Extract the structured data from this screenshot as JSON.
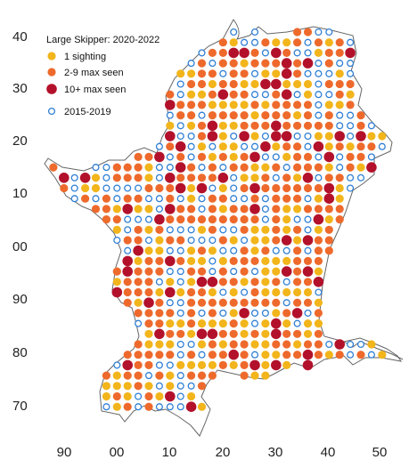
{
  "legend": {
    "title": "Large Skipper: 2020-2022",
    "items": [
      {
        "label": "1 sighting",
        "category": "one"
      },
      {
        "label": "2-9 max seen",
        "category": "few"
      },
      {
        "label": "10+ max seen",
        "category": "many"
      },
      {
        "label": "2015-2019",
        "category": "old"
      }
    ]
  },
  "colors": {
    "one": "#f2b51b",
    "few": "#ee6a2c",
    "many": "#b3112b",
    "old": "#2f7fd4",
    "outline": "#555555"
  },
  "axes": {
    "y_ticks": [
      "40",
      "30",
      "20",
      "10",
      "00",
      "90",
      "80",
      "70"
    ],
    "x_ticks": [
      "90",
      "00",
      "10",
      "20",
      "30",
      "40",
      "50"
    ]
  },
  "grid_rows": [
    {
      "row": 41,
      "cells": "...........................OOOOOOO......"
    },
    {
      "row": 40,
      "cells": "......................OFFFFF..FFFFFFF...."
    },
    {
      "row": 39,
      "cells": ".....................FOOOYOOFFFFFFFFF...."
    },
    {
      "row": 38,
      "cells": "....................OOOOFFFFFFFYFFFFF...."
    },
    {
      "row": 37,
      "cells": ".....................FOOOOOOOFYFFFYFFFF...."
    },
    {
      "row": 36,
      "cells": "...................OOOOFFFOYFFFOOFMOFMFF.."
    },
    {
      "row": 35,
      "cells": "...............FOOOYFOOYOYFOOOOOOYOOFY..."
    },
    {
      "row": 34,
      "cells": "..............YMOOOOYOMFFFFFFOOOOOOOOOO.."
    },
    {
      "row": 33,
      "cells": "..............YFOOFYOOMFYOOFYOOOOOOOOYF.."
    },
    {
      "row": 32,
      "cells": "..............FYOOYFOYFOFFFMOOOOOOOOOOO.."
    },
    {
      "row": 31,
      "cells": "..............YOYOYFYFFYFFFFFOYOOYFFYOOO."
    },
    {
      "row": 30,
      "cells": "...............YOOFFYFFFFFFYFFOOOYFFOOOO."
    },
    {
      "row": 29,
      "cells": "...............OOOFYFFOFMFFFFFFFYFOYOOOOO"
    },
    {
      "row": 28,
      "cells": "...............OOOYYFOFOMFFFFFFFFFMFOOOOO"
    },
    {
      "row": 27,
      "cells": "..............FYFYFFFMFYFFFFFFFFFFYOOOOOO"
    },
    {
      "row": 26,
      "cells": "..............OFYFFOFOMMFFFFFFFFFFYFFYOOO"
    },
    {
      "row": 25,
      "cells": "..............OYFFFFYFFFFFFFFFFFFFFYFFFF."
    },
    {
      "row": 24,
      "cells": "..............FFFFOFFFFFFFFFFFFFYFFFFFFFF"
    },
    {
      "row": 23,
      "cells": "...............FYFFFFFFFFFFFFFFFFFFFFFFFF"
    },
    {
      "row": 22,
      "cells": "...............OFFYFFFFFFFFFFFFFFFFFOO..."
    }
  ],
  "cells": [
    {
      "e": 33,
      "n": 41,
      "c": "few"
    },
    {
      "e": 35,
      "n": 41,
      "c": "few"
    },
    {
      "e": 37,
      "n": 41,
      "c": "few"
    },
    {
      "e": 39,
      "n": 41,
      "c": "few"
    },
    {
      "e": 41,
      "n": 41,
      "c": "few"
    },
    {
      "e": 24,
      "n": 39,
      "c": "old"
    },
    {
      "e": 26,
      "n": 39,
      "c": "few"
    },
    {
      "e": 28,
      "n": 39,
      "c": "few"
    },
    {
      "e": 30,
      "n": 39,
      "c": "few"
    },
    {
      "e": 32,
      "n": 39,
      "c": "few"
    },
    {
      "e": 34,
      "n": 39,
      "c": "few"
    },
    {
      "e": 36,
      "n": 39,
      "c": "few"
    },
    {
      "e": 38,
      "n": 39,
      "c": "few"
    },
    {
      "e": 40,
      "n": 39,
      "c": "few"
    },
    {
      "e": 42,
      "n": 39,
      "c": "few"
    },
    {
      "e": 23,
      "n": 37,
      "c": "old"
    },
    {
      "e": 25,
      "n": 37,
      "c": "few"
    },
    {
      "e": 27,
      "n": 37,
      "c": "old"
    },
    {
      "e": 29,
      "n": 37,
      "c": "one"
    },
    {
      "e": 31,
      "n": 37,
      "c": "old"
    },
    {
      "e": 33,
      "n": 37,
      "c": "few"
    },
    {
      "e": 35,
      "n": 37,
      "c": "few"
    },
    {
      "e": 37,
      "n": 37,
      "c": "one"
    },
    {
      "e": 39,
      "n": 37,
      "c": "few"
    },
    {
      "e": 41,
      "n": 37,
      "c": "few"
    },
    {
      "e": 18,
      "n": 35,
      "c": "old"
    },
    {
      "e": 20,
      "n": 35,
      "c": "old"
    },
    {
      "e": 22,
      "n": 35,
      "c": "old"
    },
    {
      "e": 24,
      "n": 35,
      "c": "old"
    },
    {
      "e": 26,
      "n": 35,
      "c": "many"
    },
    {
      "e": 28,
      "n": 35,
      "c": "few"
    },
    {
      "e": 30,
      "n": 35,
      "c": "one"
    },
    {
      "e": 32,
      "n": 35,
      "c": "few"
    },
    {
      "e": 34,
      "n": 35,
      "c": "old"
    },
    {
      "e": 36,
      "n": 35,
      "c": "many"
    },
    {
      "e": 38,
      "n": 35,
      "c": "few"
    },
    {
      "e": 40,
      "n": 35,
      "c": "old"
    },
    {
      "e": 17,
      "n": 33,
      "c": "many"
    },
    {
      "e": 19,
      "n": 33,
      "c": "one"
    },
    {
      "e": 21,
      "n": 33,
      "c": "old"
    },
    {
      "e": 23,
      "n": 33,
      "c": "old"
    },
    {
      "e": 25,
      "n": 33,
      "c": "few"
    },
    {
      "e": 27,
      "n": 33,
      "c": "old"
    },
    {
      "e": 29,
      "n": 33,
      "c": "old"
    },
    {
      "e": 31,
      "n": 33,
      "c": "old"
    },
    {
      "e": 33,
      "n": 33,
      "c": "old"
    },
    {
      "e": 35,
      "n": 33,
      "c": "old"
    },
    {
      "e": 37,
      "n": 33,
      "c": "old"
    },
    {
      "e": 39,
      "n": 33,
      "c": "old"
    },
    {
      "e": 41,
      "n": 33,
      "c": "many"
    },
    {
      "e": 14,
      "n": 31,
      "c": "one"
    },
    {
      "e": 16,
      "n": 31,
      "c": "old"
    },
    {
      "e": 18,
      "n": 31,
      "c": "old"
    },
    {
      "e": 20,
      "n": 31,
      "c": "few"
    },
    {
      "e": 22,
      "n": 31,
      "c": "many"
    },
    {
      "e": 24,
      "n": 31,
      "c": "one"
    },
    {
      "e": 26,
      "n": 31,
      "c": "few"
    },
    {
      "e": 28,
      "n": 31,
      "c": "old"
    },
    {
      "e": 30,
      "n": 31,
      "c": "old"
    },
    {
      "e": 32,
      "n": 31,
      "c": "old"
    },
    {
      "e": 34,
      "n": 31,
      "c": "old"
    },
    {
      "e": 36,
      "n": 31,
      "c": "old"
    },
    {
      "e": 38,
      "n": 31,
      "c": "old"
    },
    {
      "e": 40,
      "n": 31,
      "c": "old"
    },
    {
      "e": 42,
      "n": 31,
      "c": "one"
    },
    {
      "e": 15,
      "n": 29,
      "c": "few"
    },
    {
      "e": 17,
      "n": 29,
      "c": "old"
    },
    {
      "e": 19,
      "n": 29,
      "c": "one"
    },
    {
      "e": 21,
      "n": 29,
      "c": "few"
    },
    {
      "e": 23,
      "n": 29,
      "c": "old"
    },
    {
      "e": 25,
      "n": 29,
      "c": "one"
    },
    {
      "e": 27,
      "n": 29,
      "c": "many"
    },
    {
      "e": 29,
      "n": 29,
      "c": "few"
    },
    {
      "e": 31,
      "n": 29,
      "c": "old"
    },
    {
      "e": 33,
      "n": 29,
      "c": "few"
    },
    {
      "e": 35,
      "n": 29,
      "c": "old"
    },
    {
      "e": 37,
      "n": 29,
      "c": "old"
    },
    {
      "e": 39,
      "n": 29,
      "c": "old"
    },
    {
      "e": 41,
      "n": 29,
      "c": "old"
    },
    {
      "e": 14,
      "n": 27,
      "c": "old"
    },
    {
      "e": 16,
      "n": 27,
      "c": "one"
    },
    {
      "e": 18,
      "n": 27,
      "c": "few"
    },
    {
      "e": 20,
      "n": 27,
      "c": "one"
    },
    {
      "e": 22,
      "n": 27,
      "c": "few"
    },
    {
      "e": 24,
      "n": 27,
      "c": "few"
    },
    {
      "e": 26,
      "n": 27,
      "c": "few"
    },
    {
      "e": 28,
      "n": 27,
      "c": "few"
    },
    {
      "e": 30,
      "n": 27,
      "c": "few"
    },
    {
      "e": 32,
      "n": 27,
      "c": "one"
    },
    {
      "e": 34,
      "n": 27,
      "c": "few"
    },
    {
      "e": 36,
      "n": 27,
      "c": "one"
    },
    {
      "e": 38,
      "n": 27,
      "c": "few"
    },
    {
      "e": 40,
      "n": 27,
      "c": "old"
    },
    {
      "e": 42,
      "n": 27,
      "c": "old"
    },
    {
      "e": 15,
      "n": 25,
      "c": "old"
    },
    {
      "e": 17,
      "n": 25,
      "c": "old"
    },
    {
      "e": 19,
      "n": 25,
      "c": "few"
    },
    {
      "e": 21,
      "n": 25,
      "c": "one"
    },
    {
      "e": 23,
      "n": 25,
      "c": "few"
    },
    {
      "e": 25,
      "n": 25,
      "c": "few"
    },
    {
      "e": 27,
      "n": 25,
      "c": "one"
    },
    {
      "e": 29,
      "n": 25,
      "c": "few"
    },
    {
      "e": 31,
      "n": 25,
      "c": "few"
    },
    {
      "e": 33,
      "n": 25,
      "c": "old"
    },
    {
      "e": 35,
      "n": 25,
      "c": "one"
    },
    {
      "e": 37,
      "n": 25,
      "c": "one"
    },
    {
      "e": 39,
      "n": 25,
      "c": "few"
    },
    {
      "e": 41,
      "n": 25,
      "c": "old"
    },
    {
      "e": 15,
      "n": 23,
      "c": "old"
    },
    {
      "e": 17,
      "n": 23,
      "c": "old"
    },
    {
      "e": 19,
      "n": 23,
      "c": "one"
    },
    {
      "e": 21,
      "n": 23,
      "c": "one"
    },
    {
      "e": 23,
      "n": 23,
      "c": "many"
    },
    {
      "e": 25,
      "n": 23,
      "c": "few"
    },
    {
      "e": 27,
      "n": 23,
      "c": "few"
    },
    {
      "e": 29,
      "n": 23,
      "c": "few"
    },
    {
      "e": 31,
      "n": 23,
      "c": "few"
    },
    {
      "e": 33,
      "n": 23,
      "c": "few"
    },
    {
      "e": 35,
      "n": 23,
      "c": "one"
    },
    {
      "e": 37,
      "n": 23,
      "c": "few"
    },
    {
      "e": 39,
      "n": 23,
      "c": "old"
    },
    {
      "e": 41,
      "n": 23,
      "c": "one"
    },
    {
      "e": 43,
      "n": 23,
      "c": "old"
    },
    {
      "e": 47,
      "n": 23,
      "c": "old"
    },
    {
      "e": 49,
      "n": 23,
      "c": "old"
    },
    {
      "e": 17,
      "n": 21,
      "c": "old"
    },
    {
      "e": 19,
      "n": 21,
      "c": "one"
    },
    {
      "e": 21,
      "n": 21,
      "c": "few"
    },
    {
      "e": 23,
      "n": 21,
      "c": "one"
    },
    {
      "e": 25,
      "n": 21,
      "c": "few"
    },
    {
      "e": 27,
      "n": 21,
      "c": "few"
    },
    {
      "e": 29,
      "n": 21,
      "c": "one"
    },
    {
      "e": 31,
      "n": 21,
      "c": "few"
    },
    {
      "e": 33,
      "n": 21,
      "c": "many"
    },
    {
      "e": 35,
      "n": 21,
      "c": "few"
    },
    {
      "e": 37,
      "n": 21,
      "c": "one"
    },
    {
      "e": 39,
      "n": 21,
      "c": "few"
    },
    {
      "e": 41,
      "n": 21,
      "c": "few"
    },
    {
      "e": 43,
      "n": 21,
      "c": "old"
    },
    {
      "e": 45,
      "n": 21,
      "c": "few"
    },
    {
      "e": 47,
      "n": 21,
      "c": "few"
    },
    {
      "e": 49,
      "n": 21,
      "c": "one"
    },
    {
      "e": 51,
      "n": 21,
      "c": "one"
    },
    {
      "e": 87,
      "n": 17,
      "c": "old"
    },
    {
      "e": 89,
      "n": 19,
      "c": "old"
    },
    {
      "e": 13,
      "n": 19,
      "c": "one"
    },
    {
      "e": 17,
      "n": 19,
      "c": "many"
    },
    {
      "e": 19,
      "n": 19,
      "c": "old"
    },
    {
      "e": 21,
      "n": 19,
      "c": "old"
    },
    {
      "e": 23,
      "n": 19,
      "c": "old"
    },
    {
      "e": 25,
      "n": 19,
      "c": "one"
    },
    {
      "e": 27,
      "n": 19,
      "c": "old"
    },
    {
      "e": 29,
      "n": 19,
      "c": "few"
    },
    {
      "e": 31,
      "n": 19,
      "c": "few"
    },
    {
      "e": 33,
      "n": 19,
      "c": "few"
    },
    {
      "e": 35,
      "n": 19,
      "c": "few"
    },
    {
      "e": 37,
      "n": 19,
      "c": "few"
    },
    {
      "e": 39,
      "n": 19,
      "c": "one"
    },
    {
      "e": 41,
      "n": 19,
      "c": "few"
    },
    {
      "e": 43,
      "n": 19,
      "c": "few"
    },
    {
      "e": 45,
      "n": 19,
      "c": "few"
    },
    {
      "e": 47,
      "n": 19,
      "c": "few"
    },
    {
      "e": 49,
      "n": 19,
      "c": "old"
    },
    {
      "e": 14,
      "n": 17,
      "c": "old"
    },
    {
      "e": 16,
      "n": 17,
      "c": "few"
    },
    {
      "e": 18,
      "n": 17,
      "c": "few"
    },
    {
      "e": 20,
      "n": 17,
      "c": "old"
    },
    {
      "e": 22,
      "n": 17,
      "c": "old"
    },
    {
      "e": 24,
      "n": 17,
      "c": "one"
    },
    {
      "e": 26,
      "n": 17,
      "c": "old"
    },
    {
      "e": 28,
      "n": 17,
      "c": "one"
    },
    {
      "e": 30,
      "n": 17,
      "c": "few"
    },
    {
      "e": 32,
      "n": 17,
      "c": "few"
    },
    {
      "e": 34,
      "n": 17,
      "c": "few"
    },
    {
      "e": 36,
      "n": 17,
      "c": "few"
    },
    {
      "e": 38,
      "n": 17,
      "c": "few"
    },
    {
      "e": 40,
      "n": 17,
      "c": "few"
    },
    {
      "e": 42,
      "n": 17,
      "c": "few"
    },
    {
      "e": 44,
      "n": 17,
      "c": "few"
    },
    {
      "e": 46,
      "n": 17,
      "c": "old"
    },
    {
      "e": 48,
      "n": 17,
      "c": "few"
    },
    {
      "e": 89,
      "n": 15,
      "c": "few"
    },
    {
      "e": 91,
      "n": 15,
      "c": "many"
    },
    {
      "e": 93,
      "n": 15,
      "c": "old"
    },
    {
      "e": 95,
      "n": 15,
      "c": "old"
    },
    {
      "e": 99,
      "n": 15,
      "c": "old"
    },
    {
      "e": 1,
      "n": 15,
      "c": "one"
    },
    {
      "e": 15,
      "n": 15,
      "c": "old"
    },
    {
      "e": 17,
      "n": 15,
      "c": "few"
    },
    {
      "e": 19,
      "n": 15,
      "c": "few"
    },
    {
      "e": 21,
      "n": 15,
      "c": "one"
    },
    {
      "e": 23,
      "n": 15,
      "c": "one"
    },
    {
      "e": 25,
      "n": 15,
      "c": "few"
    },
    {
      "e": 27,
      "n": 15,
      "c": "old"
    },
    {
      "e": 29,
      "n": 15,
      "c": "few"
    },
    {
      "e": 31,
      "n": 15,
      "c": "many"
    },
    {
      "e": 33,
      "n": 15,
      "c": "few"
    },
    {
      "e": 35,
      "n": 15,
      "c": "few"
    },
    {
      "e": 37,
      "n": 15,
      "c": "one"
    },
    {
      "e": 39,
      "n": 15,
      "c": "few"
    },
    {
      "e": 41,
      "n": 15,
      "c": "few"
    },
    {
      "e": 43,
      "n": 15,
      "c": "few"
    },
    {
      "e": 45,
      "n": 15,
      "c": "old"
    },
    {
      "e": 47,
      "n": 15,
      "c": "one"
    },
    {
      "e": 49,
      "n": 15,
      "c": "old"
    }
  ]
}
